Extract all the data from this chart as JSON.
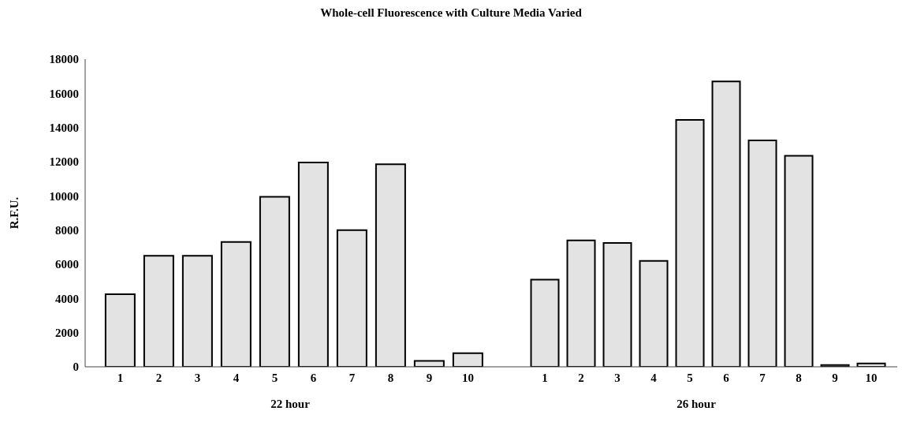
{
  "chart_data": [
    {
      "type": "bar",
      "title": "Whole-cell Fluorescence with Culture Media Varied",
      "ylabel": "R.F.U.",
      "xlabel": "22 hour",
      "categories": [
        "1",
        "2",
        "3",
        "4",
        "5",
        "6",
        "7",
        "8",
        "9",
        "10"
      ],
      "values": [
        4250,
        6500,
        6500,
        7300,
        9950,
        11950,
        8000,
        11850,
        350,
        800
      ],
      "color": "#e3e3e3",
      "ylim": [
        0,
        18000
      ],
      "yticks": [
        0,
        2000,
        4000,
        6000,
        8000,
        10000,
        12000,
        14000,
        16000,
        18000
      ]
    },
    {
      "type": "bar",
      "xlabel": "26 hour",
      "categories": [
        "1",
        "2",
        "3",
        "4",
        "5",
        "6",
        "7",
        "8",
        "9",
        "10"
      ],
      "values": [
        5100,
        7400,
        7250,
        6200,
        14450,
        16700,
        13250,
        12350,
        100,
        200
      ],
      "color": "#e3e3e3",
      "ylim": [
        0,
        18000
      ],
      "yticks": [
        0,
        2000,
        4000,
        6000,
        8000,
        10000,
        12000,
        14000,
        16000,
        18000
      ],
      "tick_labels": "x"
    }
  ]
}
